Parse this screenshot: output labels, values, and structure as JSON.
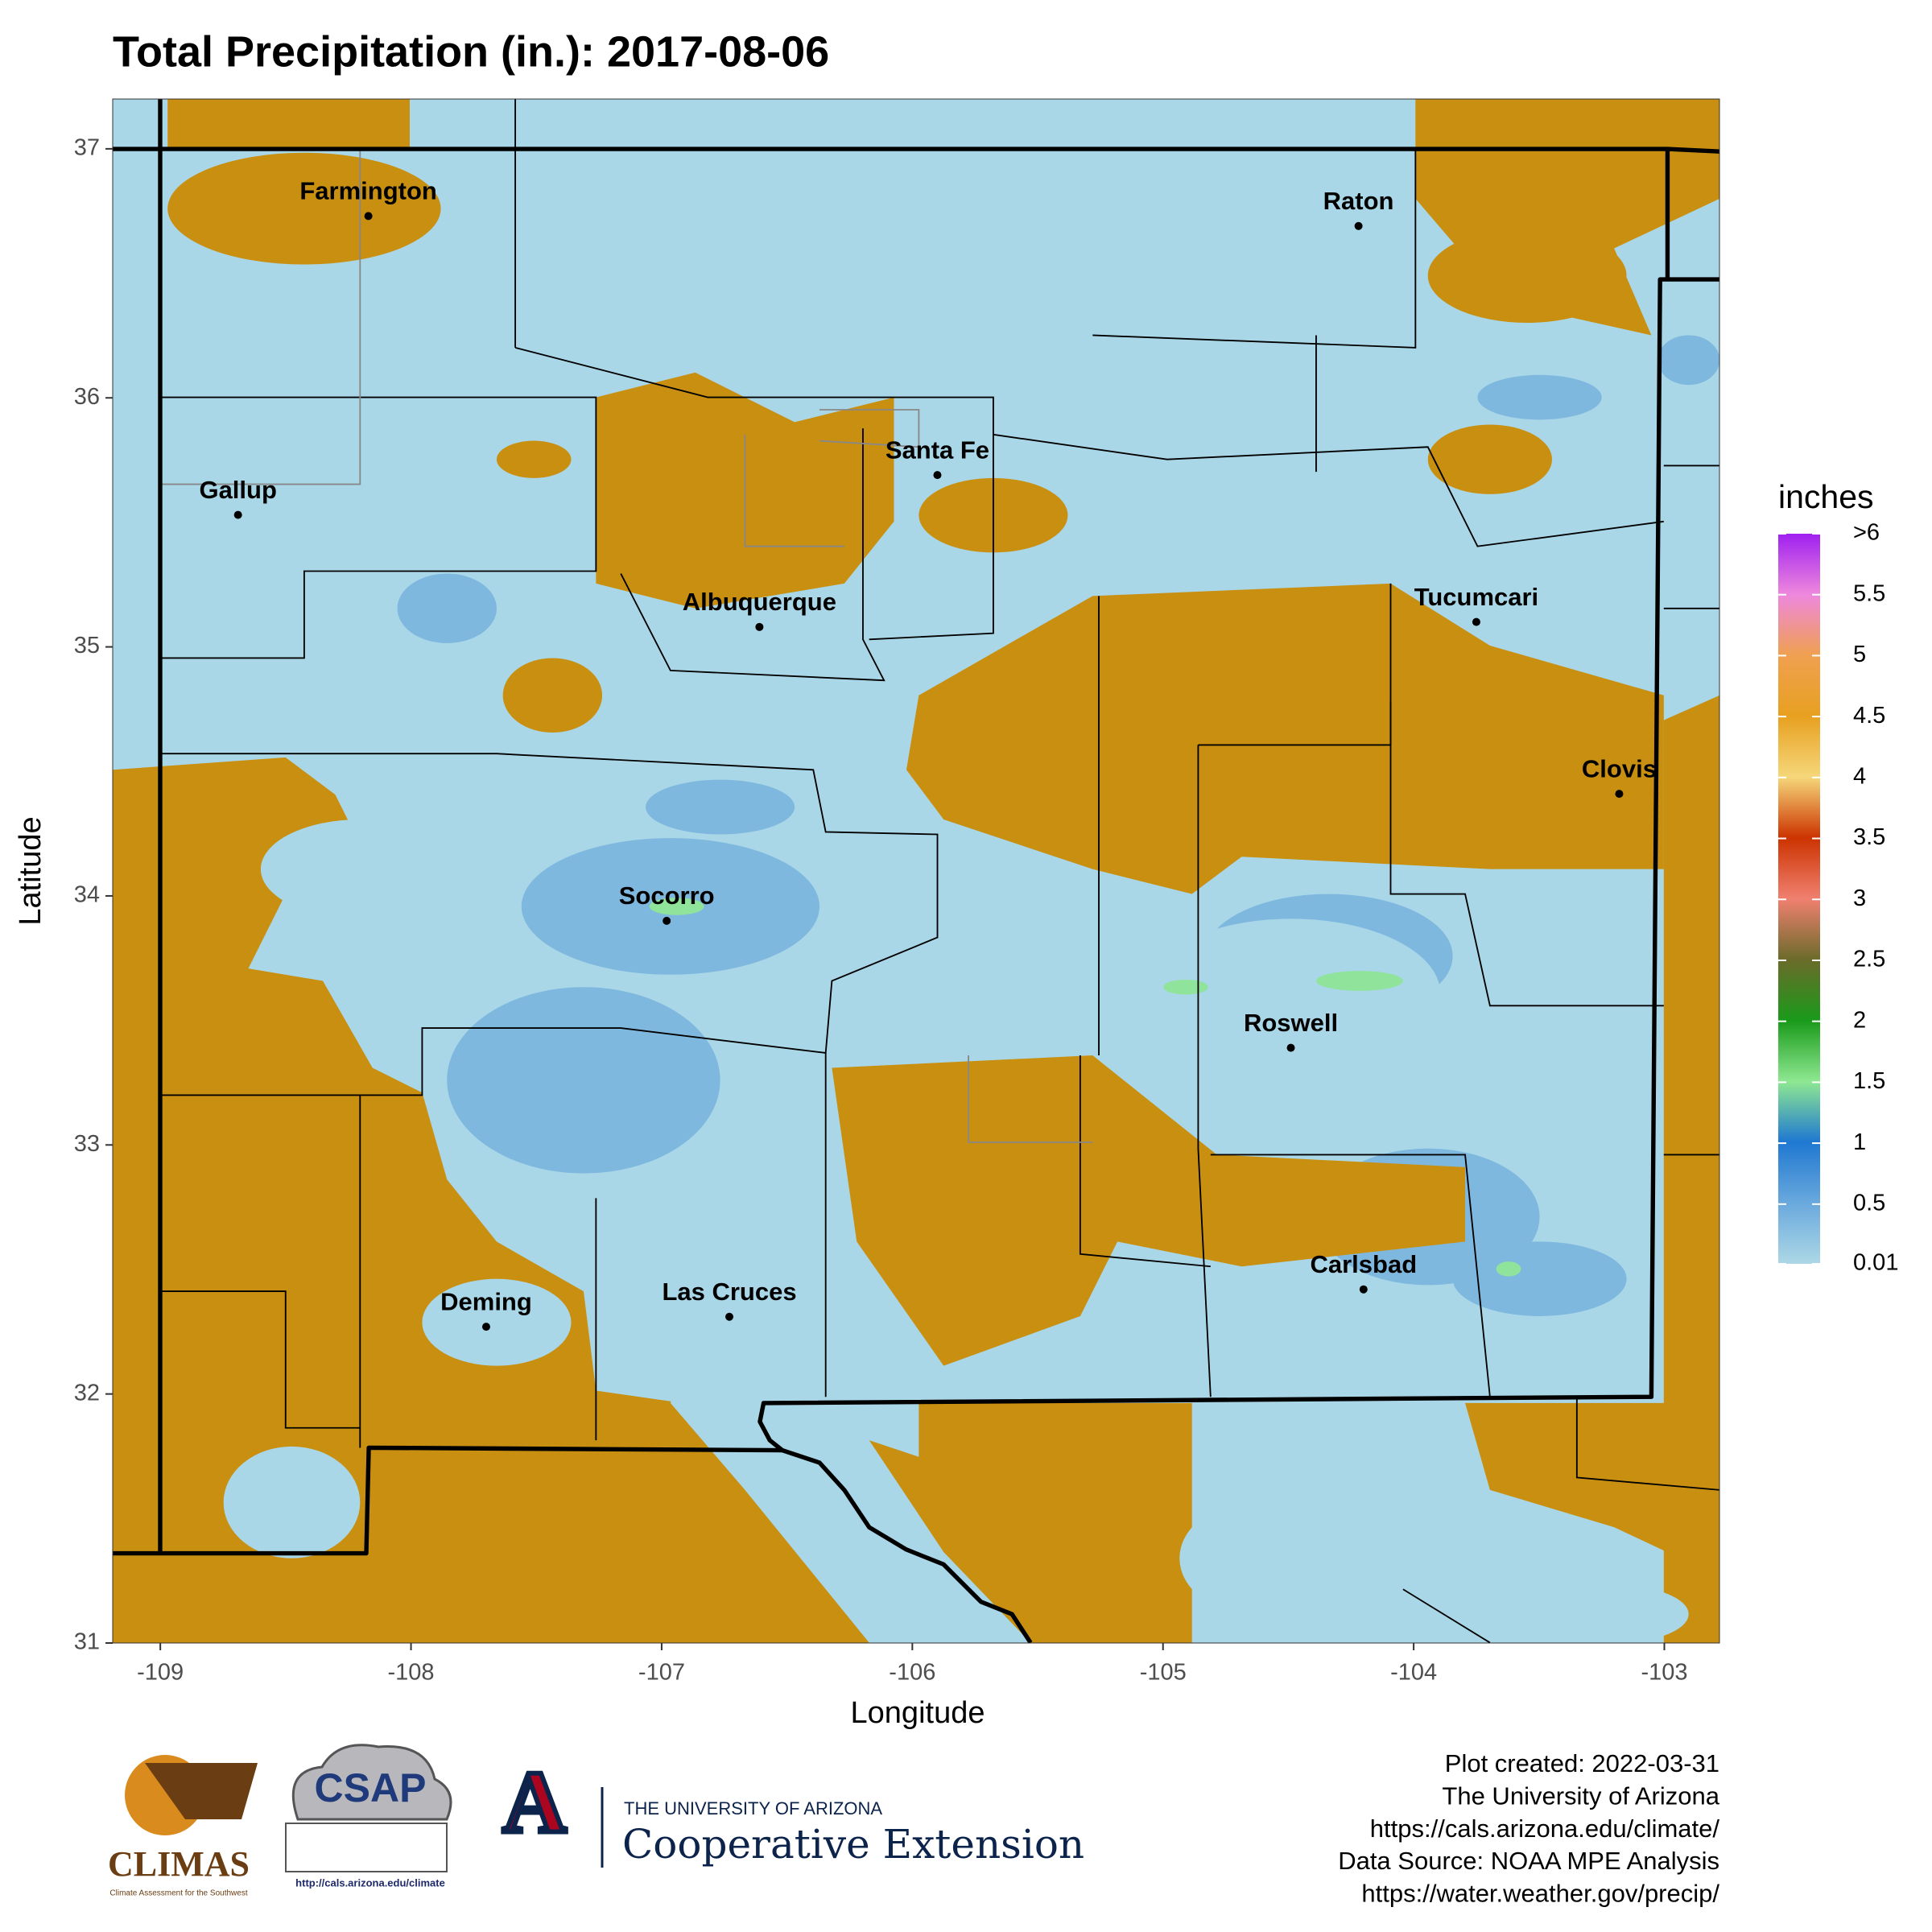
{
  "chart_data": {
    "type": "map",
    "title": "Total Precipitation (in.): 2017-08-06",
    "x_label": "Longitude",
    "y_label": "Latitude",
    "xlim": [
      -109.19,
      -102.78
    ],
    "ylim": [
      31,
      37.2
    ],
    "xticks": [
      -109,
      -108,
      -107,
      -106,
      -105,
      -104,
      -103
    ],
    "yticks": [
      31,
      32,
      33,
      34,
      35,
      36,
      37
    ],
    "cities": [
      {
        "name": "Farmington",
        "lon": -108.17,
        "lat": 36.73
      },
      {
        "name": "Gallup",
        "lon": -108.69,
        "lat": 35.53
      },
      {
        "name": "Santa Fe",
        "lon": -105.9,
        "lat": 35.69
      },
      {
        "name": "Albuquerque",
        "lon": -106.61,
        "lat": 35.08
      },
      {
        "name": "Raton",
        "lon": -104.22,
        "lat": 36.69
      },
      {
        "name": "Tucumcari",
        "lon": -103.75,
        "lat": 35.1
      },
      {
        "name": "Clovis",
        "lon": -103.18,
        "lat": 34.41
      },
      {
        "name": "Socorro",
        "lon": -106.98,
        "lat": 33.9
      },
      {
        "name": "Roswell",
        "lon": -104.49,
        "lat": 33.39
      },
      {
        "name": "Carlsbad",
        "lon": -104.2,
        "lat": 32.42
      },
      {
        "name": "Deming",
        "lon": -107.7,
        "lat": 32.27
      },
      {
        "name": "Las Cruces",
        "lon": -106.73,
        "lat": 32.31
      }
    ],
    "colorbar": {
      "title": "inches",
      "lim": [
        0.01,
        6
      ],
      "ticks": [
        0.01,
        0.5,
        1,
        1.5,
        2,
        2.5,
        3,
        3.5,
        4,
        4.5,
        5,
        5.5,
        {
          "value": 6,
          "label": ">6"
        }
      ],
      "colors": [
        "#add8e6",
        "#6aa9dd",
        "#1f78d1",
        "#8ee891",
        "#1a9a1a",
        "#6b6b2a",
        "#f08070",
        "#cc3300",
        "#f5d77a",
        "#e8a020",
        "#f0a050",
        "#ee88dd",
        "#a020f0"
      ]
    }
  },
  "footer": [
    "Plot created: 2022-03-31",
    "The University of Arizona",
    "https://cals.arizona.edu/climate/",
    "Data Source: NOAA MPE Analysis",
    "https://water.weather.gov/precip/"
  ],
  "logos": {
    "climas": "CLIMAS",
    "climas_sub": "Climate Assessment for the Southwest",
    "csap": "CSAP",
    "csap_url": "http://cals.arizona.edu/climate",
    "ua_mark": "A",
    "ua_name": "THE UNIVERSITY OF ARIZONA",
    "ua_unit": "Cooperative Extension"
  }
}
